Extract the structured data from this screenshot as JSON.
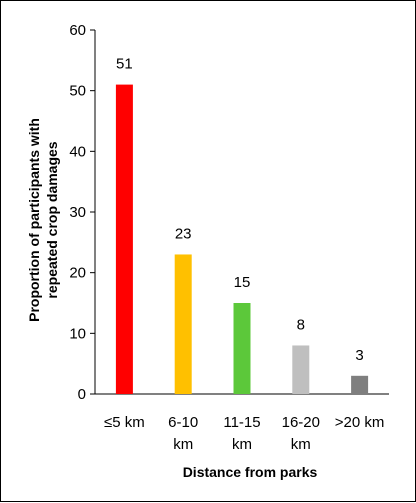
{
  "chart_data": {
    "type": "bar",
    "categories": [
      [
        "≤5 km"
      ],
      [
        "6-10",
        "km"
      ],
      [
        "11-15",
        "km"
      ],
      [
        "16-20",
        "km"
      ],
      [
        ">20 km"
      ]
    ],
    "values": [
      51,
      23,
      15,
      8,
      3
    ],
    "data_labels": [
      "51",
      "23",
      "15",
      "8",
      "3"
    ],
    "bar_colors": [
      "#ff0000",
      "#ffc000",
      "#5cc83a",
      "#bfbfbf",
      "#7f7f7f"
    ],
    "xlabel": "Distance from parks",
    "ylabel": [
      "Proportion of participants with",
      "repeated crop damages"
    ],
    "ylim": [
      0,
      60
    ],
    "yticks": [
      0,
      10,
      20,
      30,
      40,
      50,
      60
    ],
    "grid": false,
    "legend": "none"
  }
}
